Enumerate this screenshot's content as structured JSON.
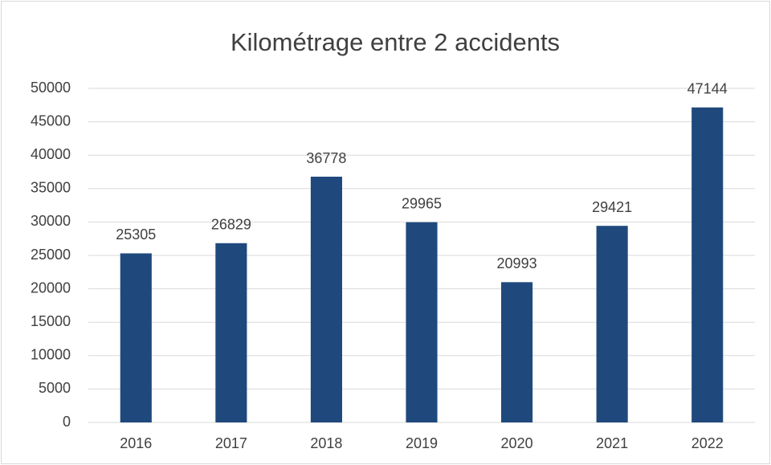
{
  "chart_data": {
    "type": "bar",
    "title": "Kilométrage entre 2 accidents",
    "categories": [
      "2016",
      "2017",
      "2018",
      "2019",
      "2020",
      "2021",
      "2022"
    ],
    "values": [
      25305,
      26829,
      36778,
      29965,
      20993,
      29421,
      47144
    ],
    "color": "#1f497d",
    "ylim": [
      0,
      50000
    ],
    "yticks": [
      0,
      5000,
      10000,
      15000,
      20000,
      25000,
      30000,
      35000,
      40000,
      45000,
      50000
    ],
    "grid": true
  }
}
